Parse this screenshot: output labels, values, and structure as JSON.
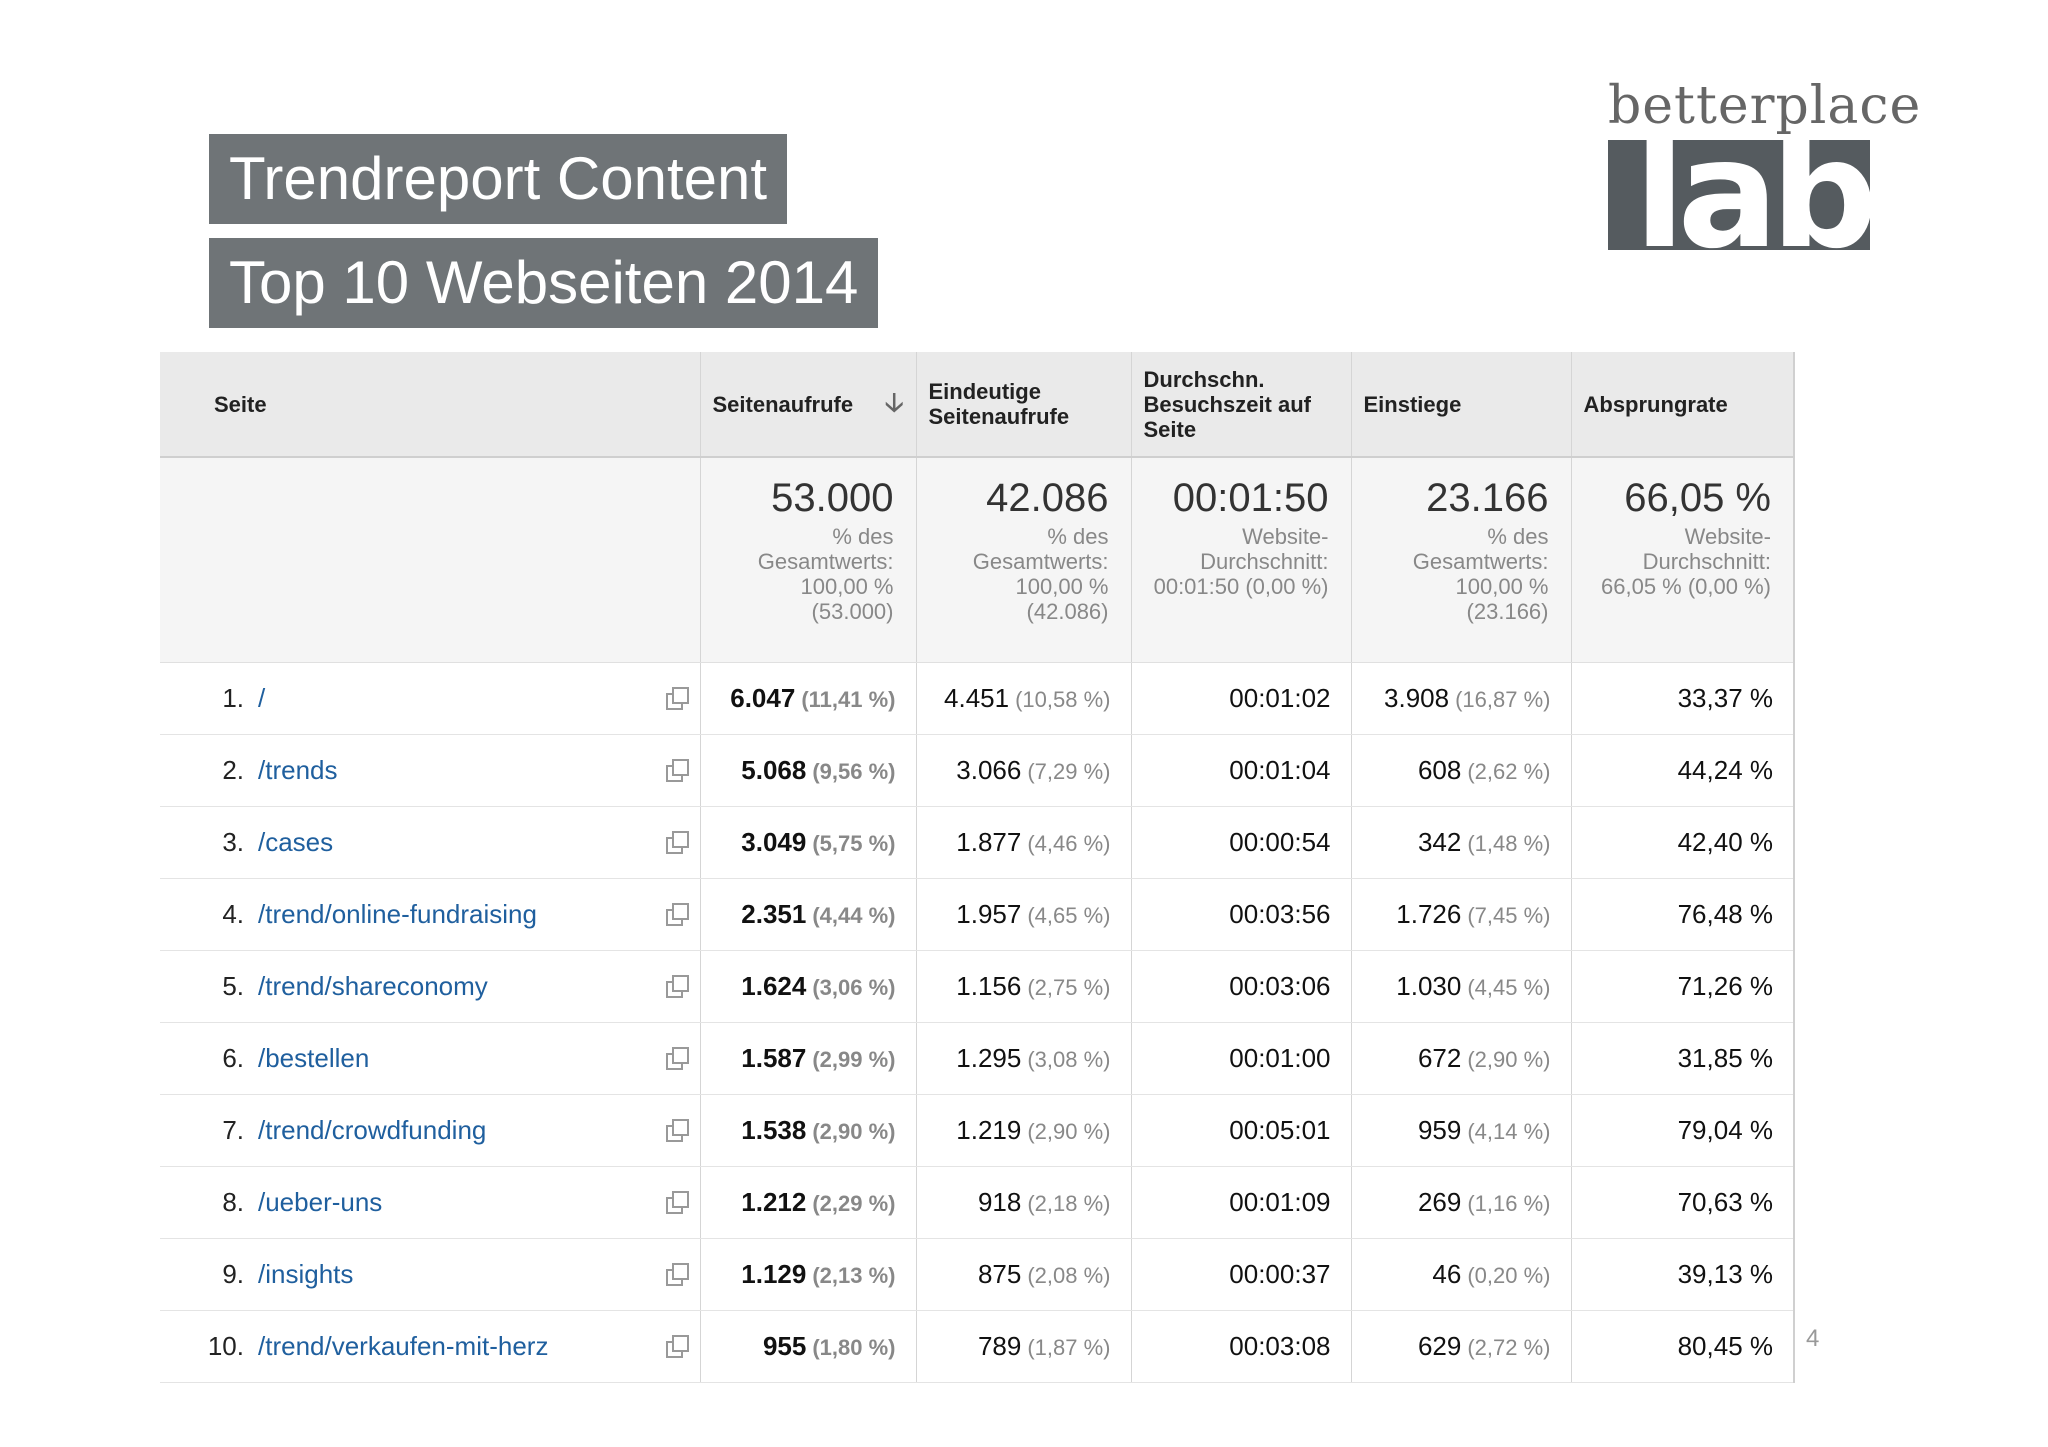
{
  "titles": {
    "line1": "Trendreport Content",
    "line2": "Top 10 Webseiten 2014"
  },
  "logo": {
    "word": "betterplace",
    "lab": "lab"
  },
  "table": {
    "headers": {
      "seite": "Seite",
      "seitenaufrufe": "Seitenaufrufe",
      "eindeutige": "Eindeutige Seitenaufrufe",
      "besuchszeit": "Durchschn. Besuchszeit auf Seite",
      "einstiege": "Einstiege",
      "absprungrate": "Absprungrate"
    },
    "summary": {
      "seitenaufrufe": {
        "value": "53.000",
        "line1": "% des",
        "line2": "Gesamtwerts:",
        "line3": "100,00 %",
        "line4": "(53.000)"
      },
      "eindeutige": {
        "value": "42.086",
        "line1": "% des",
        "line2": "Gesamtwerts:",
        "line3": "100,00 %",
        "line4": "(42.086)"
      },
      "besuchszeit": {
        "value": "00:01:50",
        "line1": "Website-",
        "line2": "Durchschnitt:",
        "line3": "00:01:50 (0,00 %)"
      },
      "einstiege": {
        "value": "23.166",
        "line1": "% des",
        "line2": "Gesamtwerts:",
        "line3": "100,00 %",
        "line4": "(23.166)"
      },
      "absprungrate": {
        "value": "66,05 %",
        "line1": "Website-",
        "line2": "Durchschnitt:",
        "line3": "66,05 % (0,00 %)"
      }
    },
    "rows": [
      {
        "idx": "1.",
        "page": "/",
        "views": "6.047",
        "views_pct": "(11,41 %)",
        "unique": "4.451",
        "unique_pct": "(10,58 %)",
        "time": "00:01:02",
        "entries": "3.908",
        "entries_pct": "(16,87 %)",
        "bounce": "33,37 %"
      },
      {
        "idx": "2.",
        "page": "/trends",
        "views": "5.068",
        "views_pct": "(9,56 %)",
        "unique": "3.066",
        "unique_pct": "(7,29 %)",
        "time": "00:01:04",
        "entries": "608",
        "entries_pct": "(2,62 %)",
        "bounce": "44,24 %"
      },
      {
        "idx": "3.",
        "page": "/cases",
        "views": "3.049",
        "views_pct": "(5,75 %)",
        "unique": "1.877",
        "unique_pct": "(4,46 %)",
        "time": "00:00:54",
        "entries": "342",
        "entries_pct": "(1,48 %)",
        "bounce": "42,40 %"
      },
      {
        "idx": "4.",
        "page": "/trend/online-fundraising",
        "views": "2.351",
        "views_pct": "(4,44 %)",
        "unique": "1.957",
        "unique_pct": "(4,65 %)",
        "time": "00:03:56",
        "entries": "1.726",
        "entries_pct": "(7,45 %)",
        "bounce": "76,48 %"
      },
      {
        "idx": "5.",
        "page": "/trend/shareconomy",
        "views": "1.624",
        "views_pct": "(3,06 %)",
        "unique": "1.156",
        "unique_pct": "(2,75 %)",
        "time": "00:03:06",
        "entries": "1.030",
        "entries_pct": "(4,45 %)",
        "bounce": "71,26 %"
      },
      {
        "idx": "6.",
        "page": "/bestellen",
        "views": "1.587",
        "views_pct": "(2,99 %)",
        "unique": "1.295",
        "unique_pct": "(3,08 %)",
        "time": "00:01:00",
        "entries": "672",
        "entries_pct": "(2,90 %)",
        "bounce": "31,85 %"
      },
      {
        "idx": "7.",
        "page": "/trend/crowdfunding",
        "views": "1.538",
        "views_pct": "(2,90 %)",
        "unique": "1.219",
        "unique_pct": "(2,90 %)",
        "time": "00:05:01",
        "entries": "959",
        "entries_pct": "(4,14 %)",
        "bounce": "79,04 %"
      },
      {
        "idx": "8.",
        "page": "/ueber-uns",
        "views": "1.212",
        "views_pct": "(2,29 %)",
        "unique": "918",
        "unique_pct": "(2,18 %)",
        "time": "00:01:09",
        "entries": "269",
        "entries_pct": "(1,16 %)",
        "bounce": "70,63 %"
      },
      {
        "idx": "9.",
        "page": "/insights",
        "views": "1.129",
        "views_pct": "(2,13 %)",
        "unique": "875",
        "unique_pct": "(2,08 %)",
        "time": "00:00:37",
        "entries": "46",
        "entries_pct": "(0,20 %)",
        "bounce": "39,13 %"
      },
      {
        "idx": "10.",
        "page": "/trend/verkaufen-mit-herz",
        "views": "955",
        "views_pct": "(1,80 %)",
        "unique": "789",
        "unique_pct": "(1,87 %)",
        "time": "00:03:08",
        "entries": "629",
        "entries_pct": "(2,72 %)",
        "bounce": "80,45 %"
      }
    ]
  },
  "page_number": "4",
  "icons": {
    "sort": "arrow-down-icon",
    "external": "open-in-new-window-icon"
  }
}
